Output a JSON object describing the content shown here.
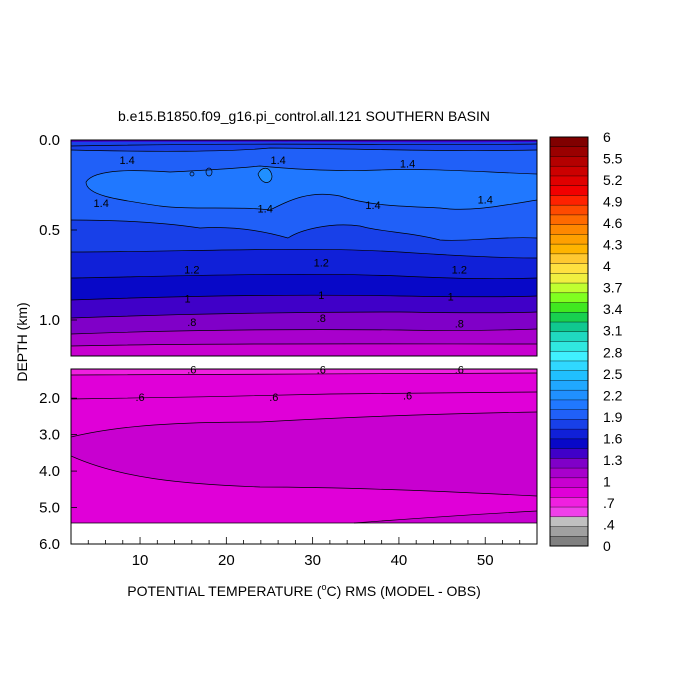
{
  "chart_data": {
    "type": "contour",
    "title": "b.e15.B1850.f09_g16.pi_control.all.121 SOUTHERN BASIN",
    "xlabel_parts": [
      "POTENTIAL TEMPERATURE (",
      "o",
      "C) RMS (MODEL - OBS)"
    ],
    "ylabel": "DEPTH (km)",
    "xlim": [
      2,
      56
    ],
    "ylim_upper": [
      0.0,
      1.2
    ],
    "ylim_lower": [
      1.2,
      6.0
    ],
    "xticks": [
      10,
      20,
      30,
      40,
      50
    ],
    "yticks_upper": [
      "0.0",
      "0.5",
      "1.0"
    ],
    "yticks_lower": [
      "2.0",
      "3.0",
      "4.0",
      "5.0",
      "6.0"
    ],
    "ocean_floor_depth": 5.4,
    "contour_levels": [
      0.4,
      0.5,
      0.6,
      0.7,
      0.8,
      0.9,
      1.0,
      1.1,
      1.2,
      1.3,
      1.4,
      1.5
    ],
    "contour_labels": [
      {
        "text": "1.4",
        "x": 8.5,
        "y": 0.11
      },
      {
        "text": "1.4",
        "x": 26,
        "y": 0.11
      },
      {
        "text": "1.4",
        "x": 41,
        "y": 0.13
      },
      {
        "text": "1.4",
        "x": 5.5,
        "y": 0.35
      },
      {
        "text": "1.4",
        "x": 24.5,
        "y": 0.38
      },
      {
        "text": "1.4",
        "x": 37,
        "y": 0.36
      },
      {
        "text": "1.4",
        "x": 50,
        "y": 0.33
      },
      {
        "text": "1.2",
        "x": 16,
        "y": 0.72
      },
      {
        "text": "1.2",
        "x": 31,
        "y": 0.68
      },
      {
        "text": "1.2",
        "x": 47,
        "y": 0.72
      },
      {
        "text": "1",
        "x": 15.5,
        "y": 0.88
      },
      {
        "text": "1",
        "x": 31,
        "y": 0.86
      },
      {
        "text": "1",
        "x": 46,
        "y": 0.87
      },
      {
        "text": ".8",
        "x": 16,
        "y": 1.01
      },
      {
        "text": ".8",
        "x": 31,
        "y": 0.99
      },
      {
        "text": ".8",
        "x": 47,
        "y": 1.02
      },
      {
        "text": ".6",
        "x": 16,
        "y": 1.22
      },
      {
        "text": ".6",
        "x": 31,
        "y": 1.22
      },
      {
        "text": ".6",
        "x": 47,
        "y": 1.22
      },
      {
        "text": ".6",
        "x": 10,
        "y": 1.97
      },
      {
        "text": ".6",
        "x": 25.5,
        "y": 1.97
      },
      {
        "text": ".6",
        "x": 41,
        "y": 1.92
      }
    ],
    "colorbar": {
      "labels": [
        "6",
        "5.5",
        "5.2",
        "4.9",
        "4.6",
        "4.3",
        "4",
        "3.7",
        "3.4",
        "3.1",
        "2.8",
        "2.5",
        "2.2",
        "1.9",
        "1.6",
        "1.3",
        "1",
        ".7",
        ".4",
        "0"
      ],
      "colors": [
        "#800000",
        "#9a0000",
        "#b40000",
        "#cc0000",
        "#e00000",
        "#f20000",
        "#ff2200",
        "#ff4a00",
        "#ff6a00",
        "#ff8800",
        "#ffa000",
        "#ffb400",
        "#ffc830",
        "#ffe040",
        "#f0ef40",
        "#c0ff30",
        "#80ff20",
        "#40e820",
        "#18d050",
        "#10c890",
        "#20d8c0",
        "#30e8e0",
        "#40f0ff",
        "#30d8ff",
        "#20c0ff",
        "#20a8ff",
        "#2090ff",
        "#2078ff",
        "#2060f8",
        "#1840e8",
        "#1020d8",
        "#0808c8",
        "#4000c8",
        "#8000c8",
        "#a800cc",
        "#c800d0",
        "#e000d8",
        "#f020e0",
        "#f040ea",
        "#c0c0c0",
        "#a0a0a0",
        "#808080"
      ]
    }
  }
}
